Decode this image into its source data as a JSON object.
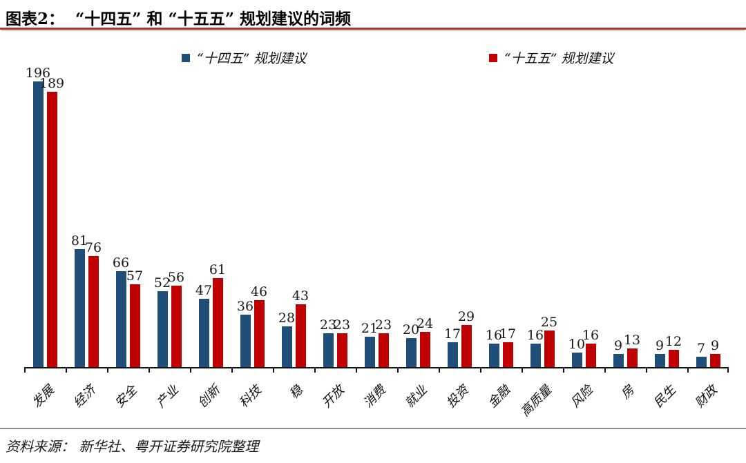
{
  "header": {
    "title_prefix": "图表2：",
    "title_text": "“十四五” 和 “十五五” 规划建议的词频"
  },
  "legend": {
    "series14_label": "“十四五” 规划建议",
    "series15_label": "“十五五” 规划建议"
  },
  "chart_data": {
    "type": "bar",
    "title": "图表2：“十四五” 和 “十五五” 规划建议的词频",
    "categories": [
      "发展",
      "经济",
      "安全",
      "产业",
      "创新",
      "科技",
      "稳",
      "开放",
      "消费",
      "就业",
      "投资",
      "金融",
      "高质量",
      "风险",
      "房",
      "民生",
      "财政"
    ],
    "series": [
      {
        "name": "“十四五” 规划建议",
        "color": "#1f4e79",
        "values": [
          196,
          81,
          66,
          52,
          47,
          36,
          28,
          23,
          21,
          20,
          17,
          16,
          16,
          10,
          9,
          9,
          7
        ]
      },
      {
        "name": "“十五五” 规划建议",
        "color": "#c00000",
        "values": [
          189,
          76,
          57,
          56,
          61,
          46,
          43,
          23,
          23,
          24,
          29,
          17,
          25,
          16,
          13,
          12,
          9
        ]
      }
    ],
    "xlabel": "",
    "ylabel": "",
    "ylim": [
      0,
      210
    ],
    "grid": false,
    "legend_position": "top",
    "value_labels": true
  },
  "colors": {
    "series14": "#1f4e79",
    "series15": "#c00000",
    "title_rule": "#a93832",
    "axis": "#161616",
    "footer_rule": "#8f8f8f"
  },
  "footer": {
    "source": "资料来源： 新华社、粤开证券研究院整理"
  }
}
